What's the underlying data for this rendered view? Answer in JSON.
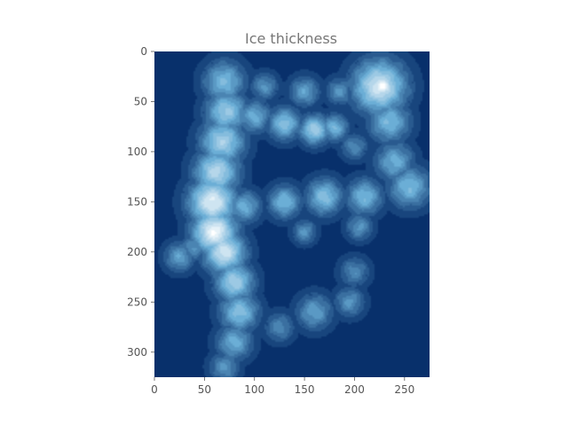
{
  "chart_data": {
    "type": "heatmap",
    "title": "Ice thickness",
    "xlabel": "",
    "ylabel": "",
    "xlim": [
      0,
      275
    ],
    "ylim": [
      325,
      0
    ],
    "x_ticks": [
      0,
      50,
      100,
      150,
      200,
      250
    ],
    "y_ticks": [
      0,
      50,
      100,
      150,
      200,
      250,
      300
    ],
    "grid": false,
    "colormap": "Blues_r",
    "colors": {
      "low": "#08306b",
      "mid": "#6baed6",
      "high": "#ffffff"
    },
    "ridges": [
      {
        "x": 70,
        "y": 30,
        "w": 14,
        "v": 0.55
      },
      {
        "x": 72,
        "y": 60,
        "w": 14,
        "v": 0.65
      },
      {
        "x": 68,
        "y": 90,
        "w": 15,
        "v": 0.7
      },
      {
        "x": 62,
        "y": 120,
        "w": 15,
        "v": 0.75
      },
      {
        "x": 58,
        "y": 150,
        "w": 16,
        "v": 0.9
      },
      {
        "x": 60,
        "y": 180,
        "w": 15,
        "v": 0.95
      },
      {
        "x": 70,
        "y": 200,
        "w": 14,
        "v": 0.85
      },
      {
        "x": 80,
        "y": 230,
        "w": 13,
        "v": 0.7
      },
      {
        "x": 85,
        "y": 260,
        "w": 13,
        "v": 0.6
      },
      {
        "x": 80,
        "y": 290,
        "w": 12,
        "v": 0.5
      },
      {
        "x": 70,
        "y": 315,
        "w": 10,
        "v": 0.4
      },
      {
        "x": 100,
        "y": 65,
        "w": 11,
        "v": 0.5
      },
      {
        "x": 130,
        "y": 72,
        "w": 11,
        "v": 0.6
      },
      {
        "x": 160,
        "y": 78,
        "w": 10,
        "v": 0.7
      },
      {
        "x": 180,
        "y": 76,
        "w": 9,
        "v": 0.55
      },
      {
        "x": 110,
        "y": 35,
        "w": 9,
        "v": 0.4
      },
      {
        "x": 150,
        "y": 40,
        "w": 10,
        "v": 0.45
      },
      {
        "x": 185,
        "y": 40,
        "w": 9,
        "v": 0.4
      },
      {
        "x": 225,
        "y": 35,
        "w": 18,
        "v": 0.85
      },
      {
        "x": 228,
        "y": 35,
        "w": 9,
        "v": 1.0
      },
      {
        "x": 235,
        "y": 70,
        "w": 14,
        "v": 0.55
      },
      {
        "x": 240,
        "y": 110,
        "w": 13,
        "v": 0.5
      },
      {
        "x": 255,
        "y": 135,
        "w": 14,
        "v": 0.55
      },
      {
        "x": 90,
        "y": 155,
        "w": 11,
        "v": 0.5
      },
      {
        "x": 130,
        "y": 150,
        "w": 11,
        "v": 0.55
      },
      {
        "x": 170,
        "y": 145,
        "w": 12,
        "v": 0.6
      },
      {
        "x": 210,
        "y": 145,
        "w": 12,
        "v": 0.55
      },
      {
        "x": 150,
        "y": 180,
        "w": 8,
        "v": 0.4
      },
      {
        "x": 205,
        "y": 175,
        "w": 9,
        "v": 0.4
      },
      {
        "x": 200,
        "y": 220,
        "w": 10,
        "v": 0.35
      },
      {
        "x": 195,
        "y": 250,
        "w": 10,
        "v": 0.4
      },
      {
        "x": 160,
        "y": 260,
        "w": 12,
        "v": 0.45
      },
      {
        "x": 125,
        "y": 275,
        "w": 10,
        "v": 0.35
      },
      {
        "x": 25,
        "y": 205,
        "w": 10,
        "v": 0.45
      },
      {
        "x": 40,
        "y": 195,
        "w": 9,
        "v": 0.4
      },
      {
        "x": 200,
        "y": 95,
        "w": 9,
        "v": 0.35
      }
    ]
  }
}
